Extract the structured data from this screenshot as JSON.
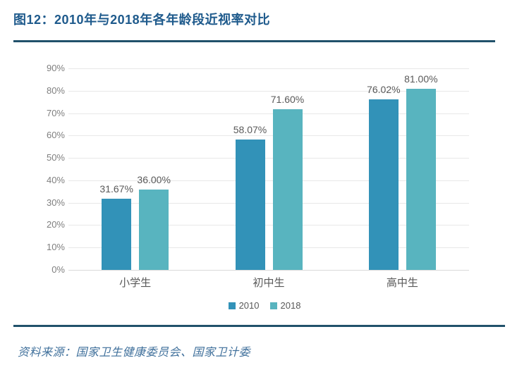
{
  "figure": {
    "title": "图12：2010年与2018年各年龄段近视率对比",
    "source": "资料来源：国家卫生健康委员会、国家卫计委"
  },
  "colors": {
    "title_text": "#1E5A8C",
    "divider_rule": "#21516B",
    "bar_2010": "#3292B8",
    "bar_2018": "#58B4BF",
    "gridline": "#E8E8E8",
    "axis_baseline": "#D9D9D9",
    "axis_tick_text": "#7F7F7F",
    "data_label_text": "#595959",
    "category_text": "#595959",
    "legend_text": "#595959",
    "source_text": "#41719C"
  },
  "chart_data": {
    "type": "bar",
    "title": "2010年与2018年各年龄段近视率对比",
    "categories": [
      "小学生",
      "初中生",
      "高中生"
    ],
    "series": [
      {
        "name": "2010",
        "color_key": "bar_2010",
        "values": [
          31.67,
          58.07,
          76.02
        ],
        "labels": [
          "31.67%",
          "58.07%",
          "76.02%"
        ]
      },
      {
        "name": "2018",
        "color_key": "bar_2018",
        "values": [
          36.0,
          71.6,
          81.0
        ],
        "labels": [
          "36.00%",
          "71.60%",
          "81.00%"
        ]
      }
    ],
    "xlabel": "",
    "ylabel": "",
    "ylim": [
      0,
      90
    ],
    "y_ticks": [
      "0%",
      "10%",
      "20%",
      "30%",
      "40%",
      "50%",
      "60%",
      "70%",
      "80%",
      "90%"
    ],
    "grid": true,
    "legend_position": "bottom"
  }
}
